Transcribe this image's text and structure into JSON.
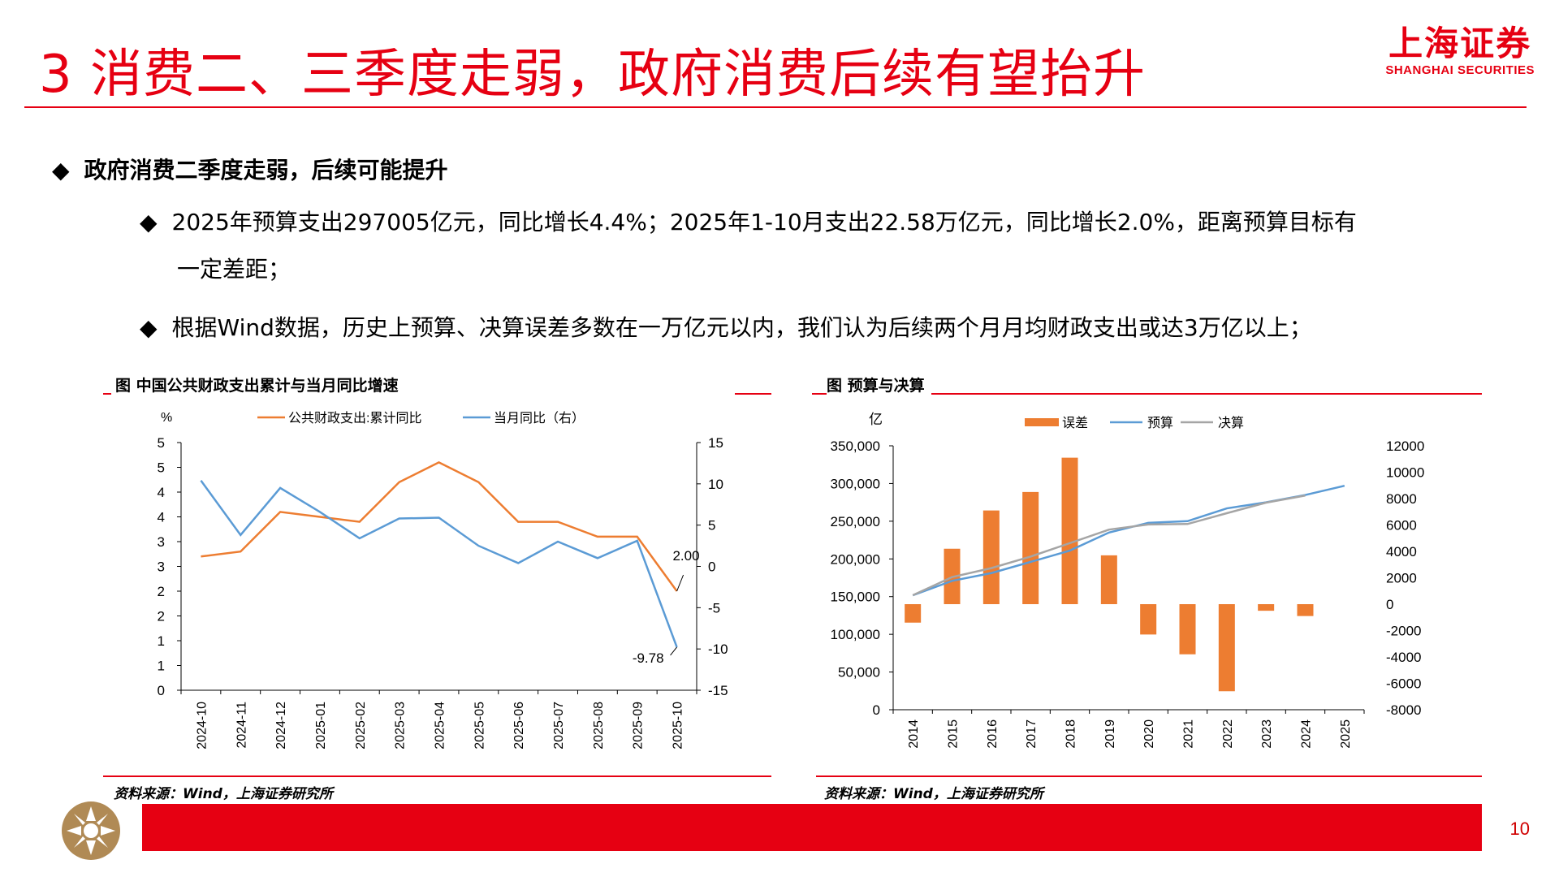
{
  "header": {
    "title": "3 消费二、三季度走弱，政府消费后续有望抬升",
    "logo_cn": "上海证券",
    "logo_en": "SHANGHAI SECURITIES",
    "accent_color": "#e60012"
  },
  "bullets": {
    "b1": "政府消费二季度走弱，后续可能提升",
    "b2_line1": "2025年预算支出297005亿元，同比增长4.4%；2025年1-10月支出22.58万亿元，同比增长2.0%，距离预算目标有",
    "b2_line2": "一定差距；",
    "b3": "根据Wind数据，历史上预算、决算误差多数在一万亿元以内，我们认为后续两个月月均财政支出或达3万亿以上；",
    "marker": "◆"
  },
  "left_chart": {
    "title": "图 中国公共财政支出累计与当月同比增速",
    "source": "资料来源：Wind，上海证券研究所"
  },
  "right_chart": {
    "title": "图 预算与决算",
    "source": "资料来源：Wind，上海证券研究所"
  },
  "footer": {
    "page": "10"
  },
  "chart_data": [
    {
      "type": "line",
      "x": [
        "2024-10",
        "2024-11",
        "2024-12",
        "2025-01",
        "2025-02",
        "2025-03",
        "2025-04",
        "2025-05",
        "2025-06",
        "2025-07",
        "2025-08",
        "2025-09",
        "2025-10"
      ],
      "ylabel": "%",
      "yticks_left": [
        "5",
        "5",
        "4",
        "4",
        "3",
        "3",
        "2",
        "2",
        "1",
        "1",
        "0"
      ],
      "ylim_left": [
        0,
        5
      ],
      "ylim_right": [
        -15,
        15
      ],
      "yticks_right": [
        "15",
        "10",
        "5",
        "0",
        "-5",
        "-10",
        "-15"
      ],
      "series": [
        {
          "name": "公共财政支出:累计同比",
          "axis": "left",
          "color": "#ed7d31",
          "values": [
            2.7,
            2.8,
            3.6,
            3.5,
            3.4,
            4.2,
            4.6,
            4.2,
            3.4,
            3.4,
            3.1,
            3.1,
            2.0
          ]
        },
        {
          "name": "当月同比（右）",
          "axis": "right",
          "color": "#5b9bd5",
          "values": [
            10.4,
            3.8,
            9.5,
            6.6,
            3.4,
            5.8,
            5.9,
            2.5,
            0.4,
            3.0,
            1.0,
            3.1,
            -9.78
          ]
        }
      ],
      "annotations": [
        "2.00",
        "-9.78"
      ],
      "legend": "top",
      "grid": false
    },
    {
      "type": "bar+line",
      "x": [
        "2014",
        "2015",
        "2016",
        "2017",
        "2018",
        "2019",
        "2020",
        "2021",
        "2022",
        "2023",
        "2024",
        "2025"
      ],
      "ylabel": "亿",
      "ylim_left": [
        0,
        350000
      ],
      "yticks_left": [
        "350,000",
        "300,000",
        "250,000",
        "200,000",
        "150,000",
        "100,000",
        "50,000",
        "0"
      ],
      "ylim_right": [
        -8000,
        12000
      ],
      "yticks_right": [
        "12000",
        "10000",
        "8000",
        "6000",
        "4000",
        "2000",
        "0",
        "-2000",
        "-4000",
        "-6000",
        "-8000"
      ],
      "series": [
        {
          "name": "误差",
          "type": "bar",
          "axis": "right",
          "color": "#ed7d31",
          "values": [
            -1400,
            4200,
            7100,
            8500,
            11100,
            3700,
            -2300,
            -3800,
            -6600,
            -500,
            -900,
            null
          ]
        },
        {
          "name": "预算",
          "type": "line",
          "axis": "left",
          "color": "#5b9bd5",
          "values": [
            151700,
            170900,
            181200,
            196000,
            211000,
            235000,
            247800,
            250100,
            267000,
            275000,
            284800,
            297000
          ]
        },
        {
          "name": "决算",
          "type": "line",
          "axis": "left",
          "color": "#a5a5a5",
          "values": [
            151800,
            175900,
            187800,
            203100,
            220900,
            238900,
            245700,
            246300,
            260600,
            274600,
            284000,
            null
          ]
        }
      ],
      "legend": "top",
      "grid": false
    }
  ]
}
